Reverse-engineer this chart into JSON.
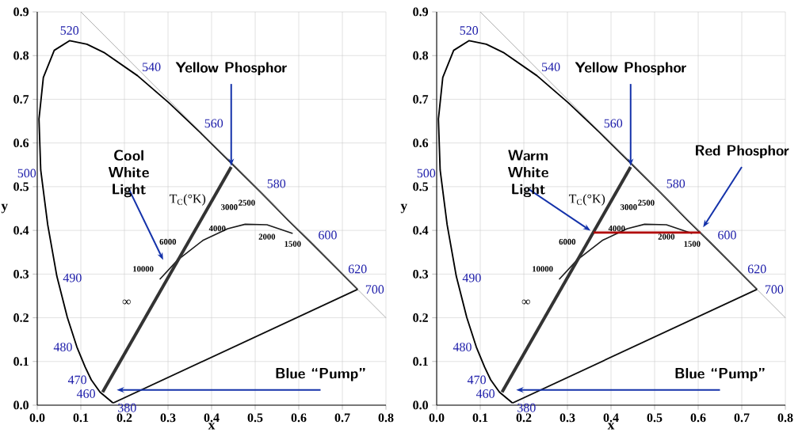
{
  "chart_data": [
    {
      "type": "line",
      "xlabel": "x",
      "ylabel": "y",
      "xlim": [
        0,
        0.8
      ],
      "ylim": [
        0,
        0.9
      ],
      "xticks": [
        {
          "value": 0,
          "label": "0.0"
        },
        0.1,
        0.2,
        0.3,
        0.4,
        0.5,
        0.6,
        0.7,
        0.8
      ],
      "yticks": [
        {
          "value": 0,
          "label": "0.0"
        },
        0.1,
        0.2,
        0.3,
        0.4,
        0.5,
        0.6,
        0.7,
        0.8,
        0.9
      ],
      "grid": true,
      "marker": "none",
      "line_style": "solid",
      "series": [
        {
          "color": "#000000",
          "x": [
            0.174,
            0.144,
            0.124,
            0.11,
            0.091,
            0.069,
            0.045,
            0.024,
            0.008,
            0.004,
            0.014,
            0.039,
            0.074,
            0.114,
            0.155,
            0.23,
            0.302,
            0.373,
            0.444,
            0.513,
            0.575,
            0.627,
            0.692,
            0.719,
            0.735
          ],
          "values": [
            0.005,
            0.03,
            0.058,
            0.087,
            0.133,
            0.201,
            0.295,
            0.413,
            0.538,
            0.655,
            0.75,
            0.812,
            0.834,
            0.826,
            0.806,
            0.754,
            0.692,
            0.625,
            0.555,
            0.487,
            0.424,
            0.373,
            0.308,
            0.281,
            0.265
          ]
        },
        {
          "color": "#1a1a1a",
          "x": [
            0.281,
            0.322,
            0.38,
            0.437,
            0.477,
            0.527,
            0.586
          ],
          "values": [
            0.288,
            0.332,
            0.377,
            0.404,
            0.414,
            0.413,
            0.393
          ]
        },
        {
          "color": "#999999",
          "x": [
            0.1,
            0.8
          ],
          "values": [
            0.9,
            0.2
          ]
        },
        {
          "color": "#333333",
          "x": [
            0.15,
            0.445
          ],
          "values": [
            0.03,
            0.545
          ]
        },
        {
          "color": "#0d0d0d",
          "x": [
            0.174,
            0.735
          ],
          "values": [
            0.005,
            0.265
          ]
        }
      ],
      "annotations": [
        {
          "text": "520",
          "x": 0.074,
          "y": 0.834
        },
        {
          "text": "540",
          "x": 0.23,
          "y": 0.754
        },
        {
          "text": "560",
          "x": 0.373,
          "y": 0.625
        },
        {
          "text": "580",
          "x": 0.513,
          "y": 0.487
        },
        {
          "text": "600",
          "x": 0.627,
          "y": 0.373
        },
        {
          "text": "620",
          "x": 0.692,
          "y": 0.308
        },
        {
          "text": "700",
          "x": 0.735,
          "y": 0.265
        },
        {
          "text": "500",
          "x": 0.008,
          "y": 0.538
        },
        {
          "text": "490",
          "x": 0.045,
          "y": 0.295
        },
        {
          "text": "480",
          "x": 0.091,
          "y": 0.133
        },
        {
          "text": "470",
          "x": 0.124,
          "y": 0.058
        },
        {
          "text": "460",
          "x": 0.144,
          "y": 0.03
        },
        {
          "text": "380",
          "x": 0.174,
          "y": 0.005
        },
        {
          "text": "10000",
          "x": 0.281,
          "y": 0.288
        },
        {
          "text": "6000",
          "x": 0.322,
          "y": 0.332
        },
        {
          "text": "4000",
          "x": 0.38,
          "y": 0.377
        },
        {
          "text": "3000",
          "x": 0.437,
          "y": 0.404
        },
        {
          "text": "2500",
          "x": 0.477,
          "y": 0.414
        },
        {
          "text": "2000",
          "x": 0.527,
          "y": 0.413
        },
        {
          "text": "1500",
          "x": 0.586,
          "y": 0.393
        },
        "∞",
        "T$_{C}$(°K)",
        "Cool White Light",
        {
          "text": "Yellow Phosphor",
          "x": 0.445,
          "y": 0.545
        },
        "Blue “Pump”"
      ]
    },
    {
      "type": "line",
      "xlabel": "x",
      "ylabel": "y",
      "xlim": [
        0,
        0.8
      ],
      "ylim": [
        0,
        0.9
      ],
      "xticks": [
        {
          "value": 0,
          "label": "0.0"
        },
        0.1,
        0.2,
        0.3,
        0.4,
        0.5,
        0.6,
        0.7,
        0.8
      ],
      "yticks": [
        {
          "value": 0,
          "label": "0.0"
        },
        0.1,
        0.2,
        0.3,
        0.4,
        0.5,
        0.6,
        0.7,
        0.8,
        0.9
      ],
      "grid": true,
      "marker": "none",
      "line_style": "solid",
      "series": [
        {
          "color": "#000000",
          "x": [
            0.174,
            0.144,
            0.124,
            0.11,
            0.091,
            0.069,
            0.045,
            0.024,
            0.008,
            0.004,
            0.014,
            0.039,
            0.074,
            0.114,
            0.155,
            0.23,
            0.302,
            0.373,
            0.444,
            0.513,
            0.575,
            0.627,
            0.692,
            0.719,
            0.735
          ],
          "values": [
            0.005,
            0.03,
            0.058,
            0.087,
            0.133,
            0.201,
            0.295,
            0.413,
            0.538,
            0.655,
            0.75,
            0.812,
            0.834,
            0.826,
            0.806,
            0.754,
            0.692,
            0.625,
            0.555,
            0.487,
            0.424,
            0.373,
            0.308,
            0.281,
            0.265
          ]
        },
        {
          "color": "#1a1a1a",
          "x": [
            0.281,
            0.322,
            0.38,
            0.437,
            0.477,
            0.527,
            0.586
          ],
          "values": [
            0.288,
            0.332,
            0.377,
            0.404,
            0.414,
            0.413,
            0.393
          ]
        },
        {
          "color": "#999999",
          "x": [
            0.1,
            0.8
          ],
          "values": [
            0.9,
            0.2
          ]
        },
        {
          "color": "#333333",
          "x": [
            0.15,
            0.445
          ],
          "values": [
            0.03,
            0.545
          ]
        },
        {
          "color": "#0d0d0d",
          "x": [
            0.174,
            0.735
          ],
          "values": [
            0.005,
            0.265
          ]
        },
        {
          "color": "#b00000",
          "x": [
            0.36,
            0.605
          ],
          "values": [
            0.395,
            0.395
          ]
        }
      ],
      "annotations": [
        {
          "text": "520",
          "x": 0.074,
          "y": 0.834
        },
        {
          "text": "540",
          "x": 0.23,
          "y": 0.754
        },
        {
          "text": "560",
          "x": 0.373,
          "y": 0.625
        },
        {
          "text": "580",
          "x": 0.513,
          "y": 0.487
        },
        {
          "text": "600",
          "x": 0.627,
          "y": 0.373
        },
        {
          "text": "620",
          "x": 0.692,
          "y": 0.308
        },
        {
          "text": "700",
          "x": 0.735,
          "y": 0.265
        },
        {
          "text": "500",
          "x": 0.008,
          "y": 0.538
        },
        {
          "text": "490",
          "x": 0.045,
          "y": 0.295
        },
        {
          "text": "480",
          "x": 0.091,
          "y": 0.133
        },
        {
          "text": "470",
          "x": 0.124,
          "y": 0.058
        },
        {
          "text": "460",
          "x": 0.144,
          "y": 0.03
        },
        {
          "text": "380",
          "x": 0.174,
          "y": 0.005
        },
        {
          "text": "10000",
          "x": 0.281,
          "y": 0.288
        },
        {
          "text": "6000",
          "x": 0.322,
          "y": 0.332
        },
        {
          "text": "4000",
          "x": 0.38,
          "y": 0.377
        },
        {
          "text": "3000",
          "x": 0.437,
          "y": 0.404
        },
        {
          "text": "2500",
          "x": 0.477,
          "y": 0.414
        },
        {
          "text": "2000",
          "x": 0.527,
          "y": 0.413
        },
        {
          "text": "1500",
          "x": 0.586,
          "y": 0.393
        },
        "∞",
        "T$_{C}$(°K)",
        "Warm White Light",
        {
          "text": "Yellow Phosphor",
          "x": 0.445,
          "y": 0.545
        },
        "Blue “Pump”",
        "Red Phosphor"
      ]
    }
  ]
}
